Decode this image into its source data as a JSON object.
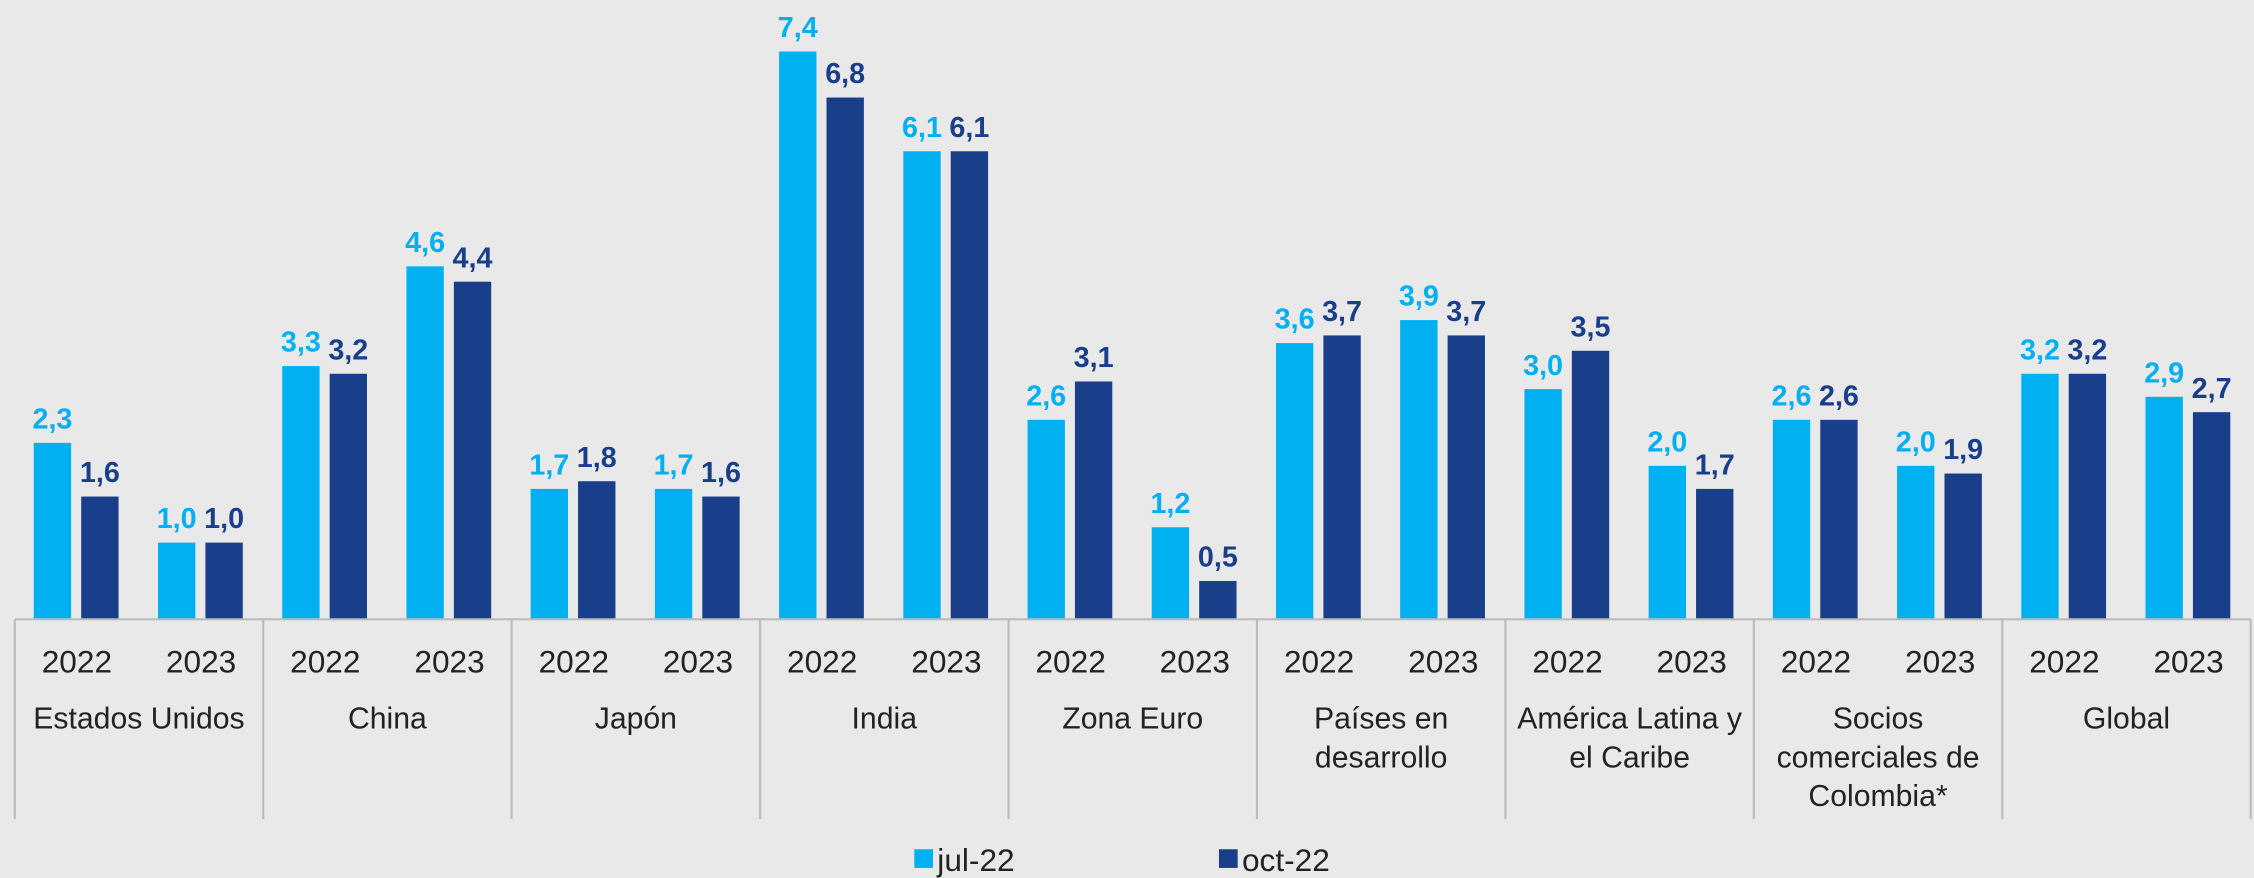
{
  "chart_data": {
    "type": "bar",
    "categories": [
      "2022",
      "2023",
      "2022",
      "2023",
      "2022",
      "2023",
      "2022",
      "2023",
      "2022",
      "2023",
      "2022",
      "2023",
      "2022",
      "2023",
      "2022",
      "2023",
      "2022",
      "2023"
    ],
    "groups": [
      "Estados Unidos",
      "China",
      "Japón",
      "India",
      "Zona Euro",
      "Países en desarrollo",
      "América Latina y el Caribe",
      "Socios comerciales de Colombia*",
      "Global"
    ],
    "series": [
      {
        "name": "jul-22",
        "color": "#00b0f0",
        "values": [
          2.3,
          1.0,
          3.3,
          4.6,
          1.7,
          1.7,
          7.4,
          6.1,
          2.6,
          1.2,
          3.6,
          3.9,
          3.0,
          2.0,
          2.6,
          2.0,
          3.2,
          2.9
        ],
        "value_labels": [
          "2,3",
          "1,0",
          "3,3",
          "4,6",
          "1,7",
          "1,7",
          "7,4",
          "6,1",
          "2,6",
          "1,2",
          "3,6",
          "3,9",
          "3,0",
          "2,0",
          "2,6",
          "2,0",
          "3,2",
          "2,9"
        ]
      },
      {
        "name": "oct-22",
        "color": "#1a3f8a",
        "values": [
          1.6,
          1.0,
          3.2,
          4.4,
          1.8,
          1.6,
          6.8,
          6.1,
          3.1,
          0.5,
          3.7,
          3.7,
          3.5,
          1.7,
          2.6,
          1.9,
          3.2,
          2.7
        ],
        "value_labels": [
          "1,6",
          "1,0",
          "3,2",
          "4,4",
          "1,8",
          "1,6",
          "6,8",
          "6,1",
          "3,1",
          "0,5",
          "3,7",
          "3,7",
          "3,5",
          "1,7",
          "2,6",
          "1,9",
          "3,2",
          "2,7"
        ]
      }
    ],
    "legend": "bottom"
  }
}
